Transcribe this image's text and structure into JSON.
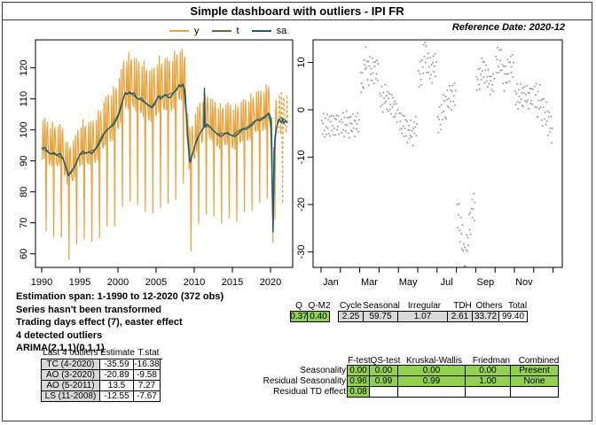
{
  "title": "Simple dashboard with outliers - IPI FR",
  "reference_date": "Reference Date: 2020-12",
  "legend": [
    {
      "label": "y",
      "color": "#E8A33D"
    },
    {
      "label": "t",
      "color": "#4C7A3C"
    },
    {
      "label": "sa",
      "color": "#1F5878"
    }
  ],
  "info_lines": [
    "Estimation span: 1-1990 to 12-2020 (372 obs)",
    "Series hasn't been transformed",
    "Trading days effect (7), easter effect",
    "4 detected outliers",
    "ARIMA(2,1,1)(0,1,1)"
  ],
  "outliers_table": {
    "headers": [
      "Last 4 outliers",
      "Estimate",
      "T.stat"
    ],
    "rows": [
      {
        "name": "TC (4-2020)",
        "estimate": "-35.59",
        "tstat": "-16.38"
      },
      {
        "name": "AO (3-2020)",
        "estimate": "-20.89",
        "tstat": "-9.58"
      },
      {
        "name": "AO (5-2011)",
        "estimate": "13.5",
        "tstat": "7.27"
      },
      {
        "name": "LS (11-2008)",
        "estimate": "-12.55",
        "tstat": "-7.67"
      }
    ]
  },
  "q_stats": {
    "left": {
      "headers": [
        "Q",
        "Q-M2"
      ],
      "values": [
        "0.37",
        "0.40"
      ]
    },
    "right": {
      "headers": [
        "Cycle",
        "Seasonal",
        "Irregular",
        "TDH",
        "Others",
        "Total"
      ],
      "values": [
        "2.25",
        "59.75",
        "1.07",
        "2.61",
        "33.72",
        "99.40"
      ]
    }
  },
  "tests_table": {
    "headers": [
      "F-test",
      "QS-test",
      "Kruskal-Wallis",
      "Friedman",
      "Combined"
    ],
    "rows": [
      {
        "label": "Seasonality",
        "values": [
          "0.00",
          "0.00",
          "0.00",
          "0.00",
          "Present"
        ]
      },
      {
        "label": "Residual Seasonality",
        "values": [
          "0.96",
          "0.99",
          "0.99",
          "1.00",
          "None"
        ]
      },
      {
        "label": "Residual TD effect",
        "values": [
          "0.08",
          "",
          "",
          "",
          ""
        ]
      }
    ]
  },
  "colors": {
    "series_y": "#E8A33D",
    "series_t": "#4C7A3C",
    "series_sa": "#1F5878",
    "subseries_line": "#2838A0",
    "subseries_mean": "#FF4040",
    "subseries_dots": "#9C9C9C",
    "pass_green": "#92D050",
    "cell_gray": "#D9D9D9",
    "axis": "#000000"
  },
  "chart_data": [
    {
      "type": "line",
      "title": "",
      "xlabel": "",
      "ylabel": "",
      "x_ticks": [
        1990,
        1995,
        2000,
        2005,
        2010,
        2015,
        2020
      ],
      "y_ticks": [
        60,
        70,
        80,
        90,
        100,
        110,
        120
      ],
      "xlim": [
        1989.2,
        2022.9
      ],
      "ylim": [
        55.6,
        129.8
      ],
      "observed_end": 2020.917,
      "forecast_end": 2022.33,
      "seasonal_monthly": [
        -3.3,
        -3.1,
        8.3,
        0.8,
        -3.7,
        10.0,
        0.9,
        -26.5,
        6.7,
        8.7,
        2.3,
        -1.0
      ],
      "seasonal_amplitude_keypoints": [
        [
          1990,
          1.0
        ],
        [
          1995,
          1.0
        ],
        [
          1998,
          1.15
        ],
        [
          2001,
          1.3
        ],
        [
          2008,
          1.3
        ],
        [
          2009,
          1.1
        ],
        [
          2012,
          1.05
        ],
        [
          2019,
          1.0
        ],
        [
          2022.4,
          1.0
        ]
      ],
      "irregular_pattern": [
        0.5,
        -0.7,
        0.9,
        -0.4,
        0.2,
        -0.9,
        0.7,
        0.3,
        -0.6,
        0.8,
        -0.2,
        0.4,
        -0.8,
        0.6,
        -0.3,
        0.9,
        -0.5,
        0.1,
        0.7,
        -0.9,
        0.3,
        -0.4,
        0.8,
        -0.6
      ],
      "series": [
        {
          "name": "y",
          "color": "#E8A33D",
          "note": "raw series with forecasts dashed after 2020-12; reconstructed as sa + seasonal*amplitude + irregular"
        },
        {
          "name": "t",
          "color": "#4C7A3C",
          "keypoints": [
            [
              1990.0,
              94.0
            ],
            [
              1991.0,
              92.5
            ],
            [
              1992.0,
              91.9
            ],
            [
              1992.8,
              90.6
            ],
            [
              1993.5,
              85.7
            ],
            [
              1994.2,
              87.7
            ],
            [
              1995.0,
              92.0
            ],
            [
              1996.0,
              92.7
            ],
            [
              1997.0,
              93.7
            ],
            [
              1998.0,
              98.5
            ],
            [
              1999.0,
              100.9
            ],
            [
              2000.0,
              104.8
            ],
            [
              2000.9,
              111.6
            ],
            [
              2001.5,
              111.9
            ],
            [
              2002.5,
              110.3
            ],
            [
              2003.5,
              108.9
            ],
            [
              2004.4,
              107.4
            ],
            [
              2005.3,
              110.6
            ],
            [
              2006.3,
              111.1
            ],
            [
              2007.3,
              112.1
            ],
            [
              2008.1,
              114.3
            ],
            [
              2008.6,
              114.2
            ],
            [
              2009.0,
              103.5
            ],
            [
              2009.45,
              89.7
            ],
            [
              2010.0,
              94.3
            ],
            [
              2010.7,
              98.7
            ],
            [
              2011.3,
              101.0
            ],
            [
              2012.0,
              101.1
            ],
            [
              2013.0,
              98.6
            ],
            [
              2014.0,
              99.0
            ],
            [
              2015.0,
              98.1
            ],
            [
              2016.0,
              100.0
            ],
            [
              2017.0,
              101.0
            ],
            [
              2018.0,
              103.0
            ],
            [
              2019.0,
              104.0
            ],
            [
              2019.7,
              105.2
            ],
            [
              2020.05,
              101.5
            ],
            [
              2020.333,
              68.5
            ],
            [
              2020.6,
              96.5
            ],
            [
              2020.85,
              101.5
            ],
            [
              2021.1,
              103.2
            ],
            [
              2021.4,
              103.9
            ],
            [
              2021.7,
              103.5
            ],
            [
              2022.0,
              103.0
            ],
            [
              2022.33,
              102.1
            ]
          ]
        },
        {
          "name": "sa",
          "color": "#1F5878",
          "keypoints": [
            [
              1990.0,
              94.0
            ],
            [
              1990.4,
              94.4
            ],
            [
              1990.8,
              93.0
            ],
            [
              1991.2,
              92.2
            ],
            [
              1991.6,
              92.7
            ],
            [
              1992.0,
              91.8
            ],
            [
              1992.4,
              92.4
            ],
            [
              1992.8,
              90.8
            ],
            [
              1993.1,
              88.4
            ],
            [
              1993.5,
              85.2
            ],
            [
              1993.8,
              86.1
            ],
            [
              1994.2,
              87.6
            ],
            [
              1994.6,
              89.6
            ],
            [
              1995.0,
              92.1
            ],
            [
              1995.4,
              93.1
            ],
            [
              1995.8,
              92.4
            ],
            [
              1996.2,
              92.9
            ],
            [
              1996.6,
              92.3
            ],
            [
              1997.0,
              93.6
            ],
            [
              1997.4,
              94.9
            ],
            [
              1997.8,
              96.6
            ],
            [
              1998.2,
              98.9
            ],
            [
              1998.6,
              100.1
            ],
            [
              1999.0,
              100.9
            ],
            [
              1999.4,
              101.6
            ],
            [
              1999.8,
              103.1
            ],
            [
              2000.2,
              105.6
            ],
            [
              2000.6,
              109.1
            ],
            [
              2000.95,
              112.1
            ],
            [
              2001.2,
              111.4
            ],
            [
              2001.5,
              112.3
            ],
            [
              2001.8,
              111.6
            ],
            [
              2002.1,
              112.0
            ],
            [
              2002.4,
              110.4
            ],
            [
              2002.7,
              109.9
            ],
            [
              2003.0,
              110.3
            ],
            [
              2003.3,
              109.5
            ],
            [
              2003.6,
              108.7
            ],
            [
              2003.9,
              108.1
            ],
            [
              2004.2,
              107.5
            ],
            [
              2004.5,
              107.2
            ],
            [
              2004.8,
              108.1
            ],
            [
              2005.1,
              109.9
            ],
            [
              2005.35,
              111.1
            ],
            [
              2005.6,
              109.9
            ],
            [
              2005.9,
              110.7
            ],
            [
              2006.2,
              111.5
            ],
            [
              2006.5,
              110.7
            ],
            [
              2006.8,
              110.3
            ],
            [
              2007.1,
              111.3
            ],
            [
              2007.4,
              112.3
            ],
            [
              2007.7,
              112.9
            ],
            [
              2008.0,
              114.5
            ],
            [
              2008.25,
              113.9
            ],
            [
              2008.5,
              114.8
            ],
            [
              2008.8,
              112.6
            ],
            [
              2009.0,
              104.0
            ],
            [
              2009.2,
              95.0
            ],
            [
              2009.45,
              89.0
            ],
            [
              2009.7,
              91.6
            ],
            [
              2010.0,
              94.1
            ],
            [
              2010.3,
              96.6
            ],
            [
              2010.6,
              98.1
            ],
            [
              2010.9,
              99.6
            ],
            [
              2011.15,
              100.4
            ],
            [
              2011.28,
              100.7
            ],
            [
              2011.333,
              113.5
            ],
            [
              2011.4,
              100.9
            ],
            [
              2011.7,
              101.9
            ],
            [
              2012.0,
              101.1
            ],
            [
              2012.3,
              100.3
            ],
            [
              2012.6,
              99.6
            ],
            [
              2012.9,
              98.9
            ],
            [
              2013.2,
              98.3
            ],
            [
              2013.5,
              97.9
            ],
            [
              2013.8,
              98.3
            ],
            [
              2014.1,
              98.9
            ],
            [
              2014.4,
              99.1
            ],
            [
              2014.7,
              98.5
            ],
            [
              2015.0,
              98.1
            ],
            [
              2015.3,
              97.9
            ],
            [
              2015.6,
              98.3
            ],
            [
              2015.9,
              99.1
            ],
            [
              2016.2,
              99.9
            ],
            [
              2016.5,
              100.4
            ],
            [
              2016.8,
              100.1
            ],
            [
              2017.1,
              100.7
            ],
            [
              2017.4,
              101.3
            ],
            [
              2017.7,
              101.7
            ],
            [
              2018.0,
              102.9
            ],
            [
              2018.3,
              103.3
            ],
            [
              2018.6,
              102.9
            ],
            [
              2018.9,
              103.5
            ],
            [
              2019.2,
              103.9
            ],
            [
              2019.5,
              104.8
            ],
            [
              2019.75,
              105.4
            ],
            [
              2019.95,
              104.5
            ],
            [
              2020.08,
              103.0
            ],
            [
              2020.167,
              95.0
            ],
            [
              2020.25,
              78.0
            ],
            [
              2020.333,
              67.0
            ],
            [
              2020.417,
              85.0
            ],
            [
              2020.5,
              93.0
            ],
            [
              2020.583,
              97.5
            ],
            [
              2020.75,
              100.3
            ],
            [
              2020.917,
              102.0
            ],
            [
              2021.08,
              103.4
            ],
            [
              2021.25,
              103.0
            ],
            [
              2021.42,
              102.4
            ],
            [
              2021.58,
              103.4
            ],
            [
              2021.75,
              102.1
            ],
            [
              2021.92,
              102.8
            ],
            [
              2022.08,
              102.6
            ],
            [
              2022.25,
              102.3
            ],
            [
              2022.33,
              102.5
            ]
          ]
        }
      ]
    },
    {
      "type": "seasonal_subseries",
      "months": [
        "Jan",
        "Feb",
        "Mar",
        "Apr",
        "May",
        "Jun",
        "Jul",
        "Aug",
        "Sep",
        "Oct",
        "Nov",
        "Dec"
      ],
      "x_tick_labels": [
        "Jan",
        "Mar",
        "May",
        "Jul",
        "Sep",
        "Nov"
      ],
      "y_ticks": [
        10,
        0,
        -10,
        -20,
        -30
      ],
      "ylim": [
        -33.5,
        14.7
      ],
      "means": [
        -3.3,
        -3.1,
        8.3,
        0.8,
        -3.7,
        10.0,
        0.9,
        -26.5,
        6.7,
        8.7,
        2.3,
        -1.0
      ],
      "lines": [
        [
          -3.6,
          -3.2,
          -3.5,
          -3.9,
          -3.2,
          -2.9,
          -3.4,
          -3.8,
          -3.1,
          -2.7,
          -3.3,
          -3.4
        ],
        [
          -3.4,
          -3.0,
          -3.5,
          -3.1,
          -2.7,
          -3.3,
          -3.6,
          -3.0,
          -3.4,
          -3.1,
          -2.6,
          -3.0
        ],
        [
          6.3,
          4.6,
          7.8,
          10.4,
          9.0,
          8.2,
          8.8,
          8.0,
          8.6,
          8.2,
          7.9,
          8.6
        ],
        [
          2.1,
          2.6,
          1.6,
          2.9,
          1.9,
          2.4,
          1.1,
          0.6,
          1.4,
          0.2,
          -0.6,
          -0.9
        ],
        [
          -2.1,
          -3.2,
          -2.6,
          -4.4,
          -3.1,
          -4.2,
          -5.6,
          -3.9,
          -5.7,
          -4.4,
          -3.2,
          -3.9
        ],
        [
          6.6,
          7.2,
          8.1,
          9.4,
          13.0,
          11.2,
          9.1,
          8.4,
          8.0,
          9.3,
          9.6,
          9.0
        ],
        [
          -3.1,
          -2.4,
          -1.3,
          -0.4,
          0.6,
          1.1,
          1.7,
          2.2,
          2.7,
          3.1,
          3.3,
          3.0
        ],
        [
          -22.0,
          -23.2,
          -24.8,
          -27.6,
          -29.8,
          -31.6,
          -29.2,
          -26.3,
          -23.6,
          -21.6,
          -20.4,
          -20.9
        ],
        [
          5.6,
          6.1,
          6.7,
          7.8,
          9.1,
          8.4,
          7.1,
          6.4,
          5.9,
          5.3,
          5.6,
          5.7
        ],
        [
          9.6,
          10.2,
          10.6,
          9.9,
          8.4,
          7.1,
          6.6,
          7.6,
          8.6,
          9.2,
          9.4,
          8.9
        ],
        [
          2.6,
          3.1,
          2.3,
          2.9,
          2.5,
          3.3,
          2.7,
          3.1,
          2.4,
          2.9,
          2.2,
          3.4
        ],
        [
          3.1,
          2.4,
          1.3,
          2.1,
          0.6,
          0.1,
          -0.6,
          -1.2,
          -1.8,
          -2.6,
          -3.6,
          -5.1
        ]
      ],
      "dot_jitter": [
        0.9,
        -1.1,
        0.3,
        1.6,
        -0.7,
        -1.5,
        1.2,
        0.1,
        -0.9,
        1.8,
        -0.3,
        0.7,
        -1.3,
        1.0,
        -1.7,
        0.4,
        1.4,
        -0.6,
        0.2,
        -1.0,
        1.5,
        -0.4,
        0.8,
        -1.6,
        0.5,
        1.1,
        -0.8,
        -0.2,
        1.3,
        -1.2,
        0.6
      ],
      "dot_spread": [
        1.5,
        1.5,
        1.8,
        1.5,
        1.5,
        1.8,
        1.8,
        2.2,
        1.5,
        1.8,
        1.5,
        2.0
      ]
    }
  ]
}
